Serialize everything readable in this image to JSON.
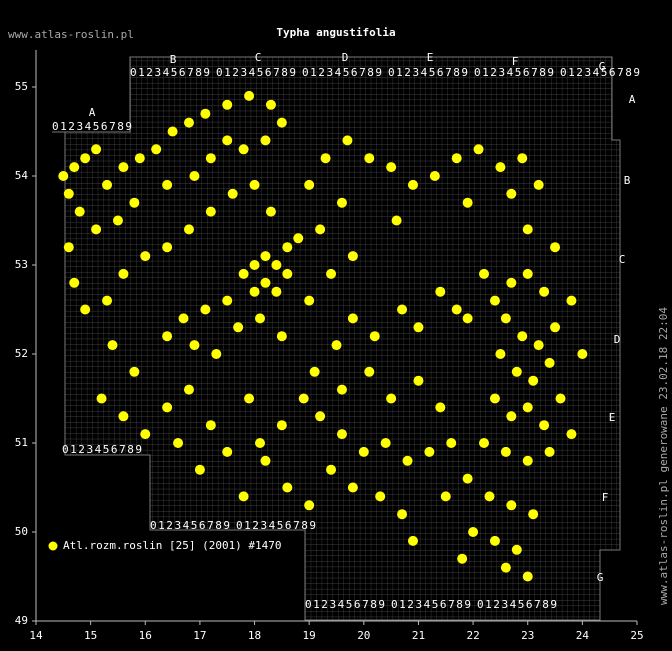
{
  "chart_data": {
    "type": "scatter",
    "title": "Typha angustifolia",
    "site": "www.atlas-roslin.pl",
    "footer": "www.atlas-roslin.pl generowane 23.02.18 22:04",
    "grid_labels": {
      "column_letters": [
        "A",
        "B",
        "C",
        "D",
        "E",
        "F",
        "G"
      ],
      "row_letters": [
        "A",
        "B",
        "C",
        "D",
        "E",
        "F",
        "G"
      ],
      "digits": "0123456789"
    },
    "color": "#ffff00",
    "xlim": [
      14,
      25
    ],
    "ylim": [
      49,
      55
    ],
    "xticks": [
      14,
      15,
      16,
      17,
      18,
      19,
      20,
      21,
      22,
      23,
      24,
      25
    ],
    "yticks": [
      49,
      50,
      51,
      52,
      53,
      54,
      55
    ],
    "series": [
      {
        "name": "Atl.rozm.roslin [25] (2001) #1470",
        "color": "#ffff00",
        "x": [
          14.5,
          14.7,
          14.9,
          15.1,
          14.6,
          14.8,
          15.3,
          15.6,
          15.9,
          16.2,
          16.5,
          16.8,
          17.1,
          17.5,
          17.9,
          18.3,
          18.5,
          18.2,
          17.8,
          17.5,
          17.2,
          16.9,
          16.4,
          15.8,
          15.5,
          15.1,
          14.6,
          14.7,
          14.9,
          15.3,
          15.6,
          16.0,
          16.4,
          16.8,
          17.2,
          17.6,
          18.0,
          18.3,
          18.0,
          18.2,
          18.4,
          18.6,
          18.2,
          18.0,
          18.4,
          17.8,
          18.6,
          18.8,
          17.5,
          17.1,
          16.7,
          16.4,
          16.9,
          17.3,
          17.7,
          18.1,
          18.5,
          19.0,
          19.4,
          19.8,
          19.2,
          19.6,
          19.0,
          19.3,
          19.7,
          20.1,
          20.5,
          20.9,
          21.3,
          21.7,
          22.1,
          22.5,
          22.9,
          23.2,
          22.7,
          21.9,
          20.6,
          19.8,
          20.2,
          20.7,
          21.0,
          21.4,
          21.7,
          19.5,
          19.1,
          19.6,
          20.1,
          20.5,
          21.0,
          21.4,
          22.4,
          22.7,
          23.0,
          23.3,
          22.6,
          22.9,
          23.2,
          23.5,
          22.5,
          22.8,
          23.1,
          23.4,
          22.4,
          22.7,
          23.0,
          23.3,
          23.6,
          22.2,
          22.6,
          23.0,
          23.4,
          23.8,
          24.0,
          23.8,
          23.5,
          23.0,
          22.2,
          21.9,
          19.2,
          19.6,
          20.0,
          20.4,
          20.8,
          21.2,
          21.6,
          19.4,
          19.8,
          20.3,
          20.7,
          19.0,
          18.6,
          18.2,
          18.5,
          18.9,
          21.5,
          21.9,
          22.3,
          22.7,
          23.1,
          22.0,
          22.4,
          22.8,
          23.0,
          22.6,
          21.8,
          20.9,
          15.2,
          15.6,
          16.0,
          16.4,
          16.8,
          17.2,
          17.5,
          17.0,
          16.6,
          15.8,
          15.4,
          17.9,
          18.1,
          17.8
        ],
        "values": [
          54.0,
          54.1,
          54.2,
          54.3,
          53.8,
          53.6,
          53.9,
          54.1,
          54.2,
          54.3,
          54.5,
          54.6,
          54.7,
          54.8,
          54.9,
          54.8,
          54.6,
          54.4,
          54.3,
          54.4,
          54.2,
          54.0,
          53.9,
          53.7,
          53.5,
          53.4,
          53.2,
          52.8,
          52.5,
          52.6,
          52.9,
          53.1,
          53.2,
          53.4,
          53.6,
          53.8,
          53.9,
          53.6,
          53.0,
          53.1,
          53.0,
          52.9,
          52.8,
          52.7,
          52.7,
          52.9,
          53.2,
          53.3,
          52.6,
          52.5,
          52.4,
          52.2,
          52.1,
          52.0,
          52.3,
          52.4,
          52.2,
          52.6,
          52.9,
          53.1,
          53.4,
          53.7,
          53.9,
          54.2,
          54.4,
          54.2,
          54.1,
          53.9,
          54.0,
          54.2,
          54.3,
          54.1,
          54.2,
          53.9,
          53.8,
          53.7,
          53.5,
          52.4,
          52.2,
          52.5,
          52.3,
          52.7,
          52.5,
          52.1,
          51.8,
          51.6,
          51.8,
          51.5,
          51.7,
          51.4,
          52.6,
          52.8,
          52.9,
          52.7,
          52.4,
          52.2,
          52.1,
          52.3,
          52.0,
          51.8,
          51.7,
          51.9,
          51.5,
          51.3,
          51.4,
          51.2,
          51.5,
          51.0,
          50.9,
          50.8,
          50.9,
          51.1,
          52.0,
          52.6,
          53.2,
          53.4,
          52.9,
          52.4,
          51.3,
          51.1,
          50.9,
          51.0,
          50.8,
          50.9,
          51.0,
          50.7,
          50.5,
          50.4,
          50.2,
          50.3,
          50.5,
          50.8,
          51.2,
          51.5,
          50.4,
          50.6,
          50.4,
          50.3,
          50.2,
          50.0,
          49.9,
          49.8,
          49.5,
          49.6,
          49.7,
          49.9,
          51.5,
          51.3,
          51.1,
          51.4,
          51.6,
          51.2,
          50.9,
          50.7,
          51.0,
          51.8,
          52.1,
          51.5,
          51.0,
          50.4
        ]
      }
    ]
  }
}
